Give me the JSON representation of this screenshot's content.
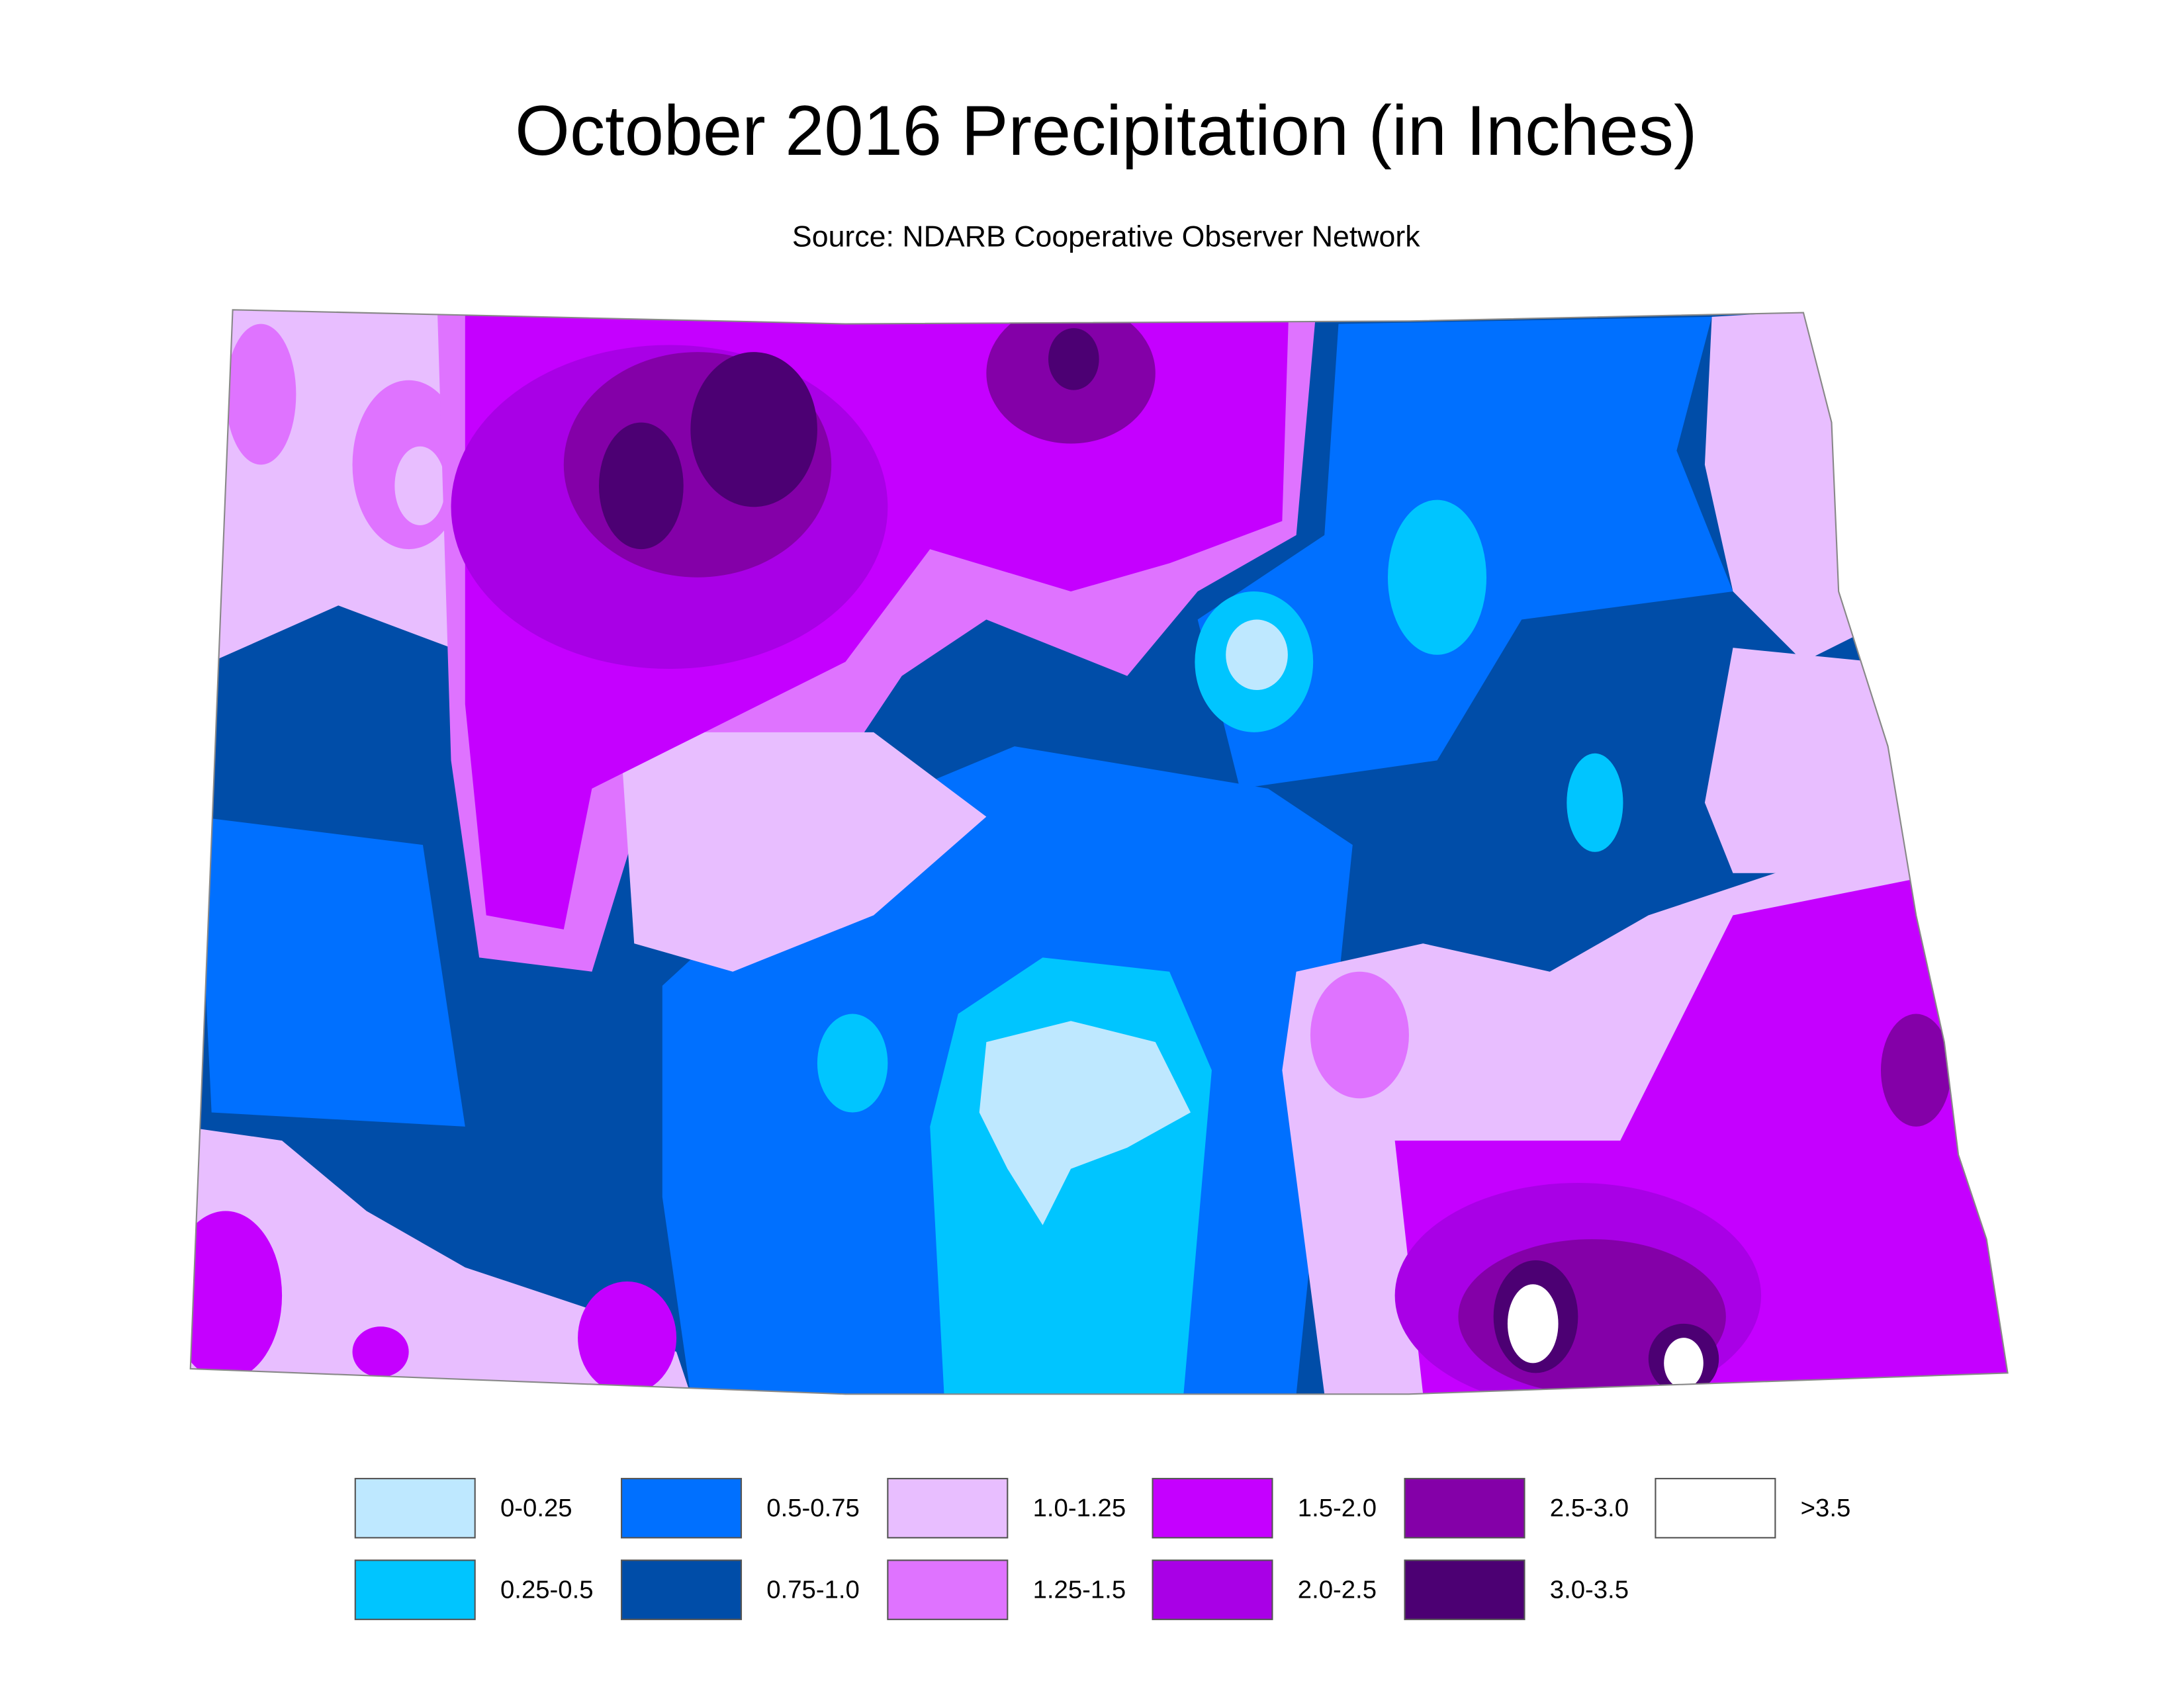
{
  "title": "October 2016 Precipitation (in Inches)",
  "subtitle": "Source: NDARB Cooperative Observer Network",
  "legend": [
    {
      "label": "0-0.25",
      "color": "#bee8ff"
    },
    {
      "label": "0.25-0.5",
      "color": "#00c5ff"
    },
    {
      "label": "0.5-0.75",
      "color": "#0070ff"
    },
    {
      "label": "0.75-1.0",
      "color": "#004da8"
    },
    {
      "label": "1.0-1.25",
      "color": "#e8beff"
    },
    {
      "label": "1.25-1.5",
      "color": "#df73ff"
    },
    {
      "label": "1.5-2.0",
      "color": "#c500ff"
    },
    {
      "label": "2.0-2.5",
      "color": "#a900e6"
    },
    {
      "label": "2.5-3.0",
      "color": "#8400a8"
    },
    {
      "label": "3.0-3.5",
      "color": "#4c0073"
    },
    {
      "label": ">3.5",
      "color": "#ffffff"
    }
  ]
}
